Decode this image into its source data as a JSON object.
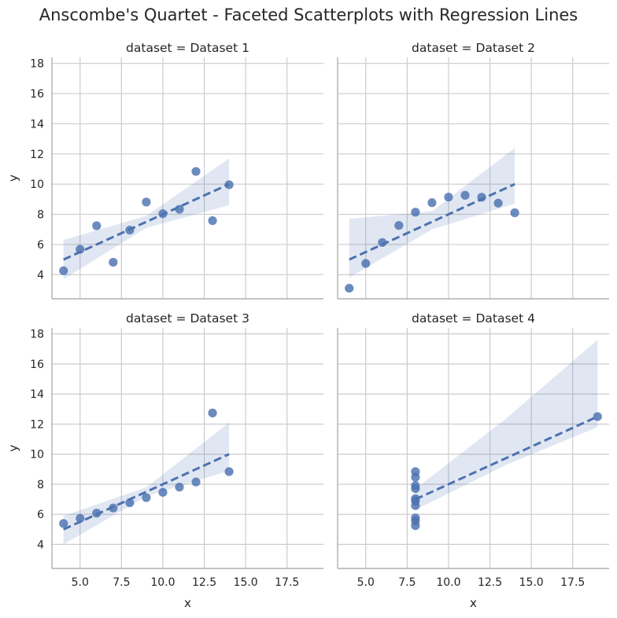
{
  "title": "Anscombe's Quartet - Faceted Scatterplots with Regression Lines",
  "colors": {
    "point": "#4c72b0",
    "line": "#4c72b0",
    "band": "#4c72b0",
    "grid": "#cccccc",
    "axis": "#b0b0b0",
    "text": "#262626"
  },
  "chart_data": [
    {
      "type": "scatter",
      "title": "dataset = Dataset 1",
      "xlabel": "",
      "ylabel": "y",
      "xlim": [
        3.3,
        19.7
      ],
      "ylim": [
        2.4,
        18.4
      ],
      "xticks": [
        5.0,
        7.5,
        10.0,
        12.5,
        15.0,
        17.5
      ],
      "xtick_labels": [
        "",
        "",
        "",
        "",
        "",
        ""
      ],
      "yticks": [
        4,
        6,
        8,
        10,
        12,
        14,
        16,
        18
      ],
      "ytick_labels": [
        "4",
        "6",
        "8",
        "10",
        "12",
        "14",
        "16",
        "18"
      ],
      "grid": true,
      "x": [
        10,
        8,
        13,
        9,
        11,
        14,
        6,
        4,
        12,
        7,
        5
      ],
      "y": [
        8.04,
        6.95,
        7.58,
        8.81,
        8.33,
        9.96,
        7.24,
        4.26,
        10.84,
        4.82,
        5.68
      ],
      "regression": {
        "intercept": 3.0,
        "slope": 0.5,
        "x_range": [
          4,
          14
        ],
        "style": "dashed"
      },
      "confidence_band": {
        "x": [
          4,
          9,
          14
        ],
        "lower": [
          3.7,
          7.1,
          8.6
        ],
        "upper": [
          6.3,
          7.9,
          11.7
        ]
      }
    },
    {
      "type": "scatter",
      "title": "dataset = Dataset 2",
      "xlabel": "",
      "ylabel": "",
      "xlim": [
        3.3,
        19.7
      ],
      "ylim": [
        2.4,
        18.4
      ],
      "xticks": [
        5.0,
        7.5,
        10.0,
        12.5,
        15.0,
        17.5
      ],
      "xtick_labels": [
        "",
        "",
        "",
        "",
        "",
        ""
      ],
      "yticks": [
        4,
        6,
        8,
        10,
        12,
        14,
        16,
        18
      ],
      "ytick_labels": [
        "",
        "",
        "",
        "",
        "",
        "",
        "",
        ""
      ],
      "grid": true,
      "x": [
        10,
        8,
        13,
        9,
        11,
        14,
        6,
        4,
        12,
        7,
        5
      ],
      "y": [
        9.14,
        8.14,
        8.74,
        8.77,
        9.26,
        8.1,
        6.13,
        3.1,
        9.13,
        7.26,
        4.74
      ],
      "regression": {
        "intercept": 3.0,
        "slope": 0.5,
        "x_range": [
          4,
          14
        ],
        "style": "dashed"
      },
      "confidence_band": {
        "x": [
          4,
          9,
          14
        ],
        "lower": [
          3.8,
          7.0,
          8.7
        ],
        "upper": [
          7.7,
          8.2,
          12.4
        ]
      }
    },
    {
      "type": "scatter",
      "title": "dataset = Dataset 3",
      "xlabel": "x",
      "ylabel": "y",
      "xlim": [
        3.3,
        19.7
      ],
      "ylim": [
        2.4,
        18.4
      ],
      "xticks": [
        5.0,
        7.5,
        10.0,
        12.5,
        15.0,
        17.5
      ],
      "xtick_labels": [
        "5.0",
        "7.5",
        "10.0",
        "12.5",
        "15.0",
        "17.5"
      ],
      "yticks": [
        4,
        6,
        8,
        10,
        12,
        14,
        16,
        18
      ],
      "ytick_labels": [
        "4",
        "6",
        "8",
        "10",
        "12",
        "14",
        "16",
        "18"
      ],
      "grid": true,
      "x": [
        10,
        8,
        13,
        9,
        11,
        14,
        6,
        4,
        12,
        7,
        5
      ],
      "y": [
        7.46,
        6.77,
        12.74,
        7.11,
        7.81,
        8.84,
        6.08,
        5.39,
        8.15,
        6.42,
        5.73
      ],
      "regression": {
        "intercept": 3.0,
        "slope": 0.5,
        "x_range": [
          4,
          14
        ],
        "style": "dashed"
      },
      "confidence_band": {
        "x": [
          4,
          9,
          14
        ],
        "lower": [
          4.0,
          7.2,
          8.9
        ],
        "upper": [
          5.9,
          7.8,
          12.1
        ]
      }
    },
    {
      "type": "scatter",
      "title": "dataset = Dataset 4",
      "xlabel": "x",
      "ylabel": "",
      "xlim": [
        3.3,
        19.7
      ],
      "ylim": [
        2.4,
        18.4
      ],
      "xticks": [
        5.0,
        7.5,
        10.0,
        12.5,
        15.0,
        17.5
      ],
      "xtick_labels": [
        "5.0",
        "7.5",
        "10.0",
        "12.5",
        "15.0",
        "17.5"
      ],
      "yticks": [
        4,
        6,
        8,
        10,
        12,
        14,
        16,
        18
      ],
      "ytick_labels": [
        "",
        "",
        "",
        "",
        "",
        "",
        "",
        ""
      ],
      "grid": true,
      "x": [
        8,
        8,
        8,
        8,
        8,
        8,
        8,
        19,
        8,
        8,
        8
      ],
      "y": [
        6.58,
        5.76,
        7.71,
        8.84,
        8.47,
        7.04,
        5.25,
        12.5,
        5.56,
        7.91,
        6.89
      ],
      "regression": {
        "intercept": 3.0,
        "slope": 0.5,
        "x_range": [
          8,
          19
        ],
        "style": "dashed"
      },
      "confidence_band": {
        "x": [
          8,
          13.5,
          19
        ],
        "lower": [
          6.3,
          9.3,
          11.8
        ],
        "upper": [
          7.7,
          12.4,
          17.6
        ]
      }
    }
  ]
}
